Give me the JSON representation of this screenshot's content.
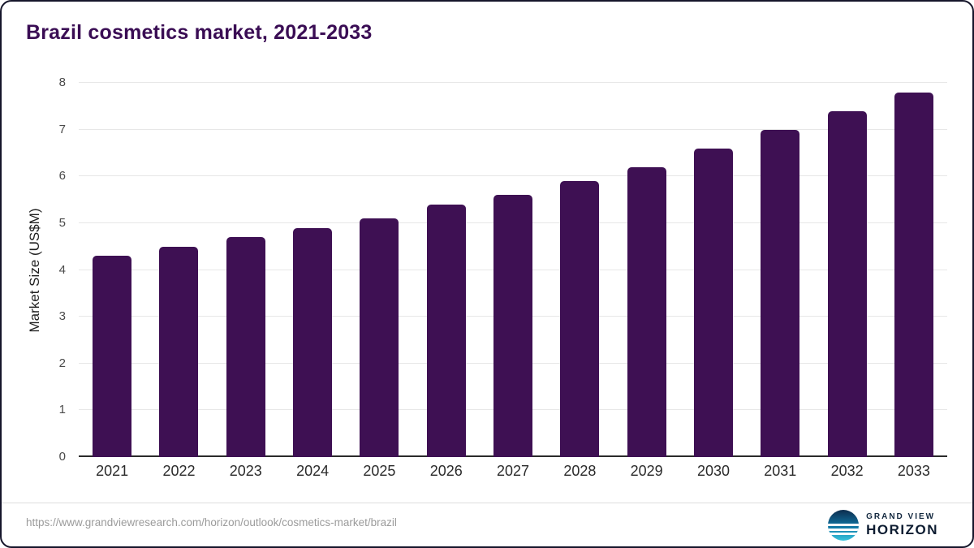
{
  "chart_data": {
    "type": "bar",
    "title": "Brazil cosmetics market, 2021-2033",
    "categories": [
      "2021",
      "2022",
      "2023",
      "2024",
      "2025",
      "2026",
      "2027",
      "2028",
      "2029",
      "2030",
      "2031",
      "2032",
      "2033"
    ],
    "values": [
      4.3,
      4.5,
      4.7,
      4.9,
      5.1,
      5.4,
      5.6,
      5.9,
      6.2,
      6.6,
      7.0,
      7.4,
      7.8
    ],
    "xlabel": "",
    "ylabel": "Market Size (US$M)",
    "ylim": [
      0,
      8
    ],
    "ytick_step": 1,
    "grid": true,
    "legend": false,
    "bar_color": "#3E1053",
    "title_color": "#3A0D54"
  },
  "footer": {
    "source_url": "https://www.grandviewresearch.com/horizon/outlook/cosmetics-market/brazil",
    "logo": {
      "icon": "horizon-circle-icon",
      "line1": "GRAND VIEW",
      "line2": "HORIZON"
    }
  }
}
